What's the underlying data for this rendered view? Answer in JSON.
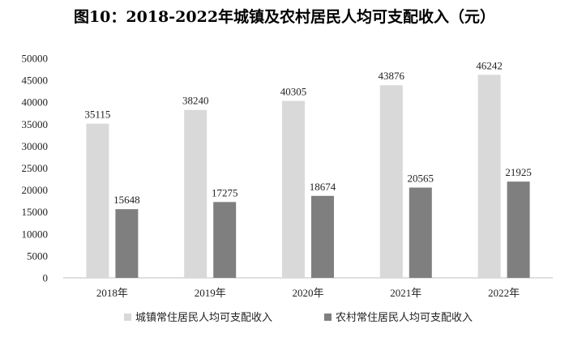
{
  "chart_data": {
    "type": "bar",
    "title": "图10：2018-2022年城镇及农村居民人均可支配收入（元）",
    "categories": [
      "2018年",
      "2019年",
      "2020年",
      "2021年",
      "2022年"
    ],
    "series": [
      {
        "name": "城镇常住居民人均可支配收入",
        "values": [
          35115,
          38240,
          40305,
          43876,
          46242
        ],
        "color": "#d9d9d9"
      },
      {
        "name": "农村常住居民人均可支配收入",
        "values": [
          15648,
          17275,
          18674,
          20565,
          21925
        ],
        "color": "#7f7f7f"
      }
    ],
    "ylim": [
      0,
      50000
    ],
    "yticks": [
      0,
      5000,
      10000,
      15000,
      20000,
      25000,
      30000,
      35000,
      40000,
      45000,
      50000
    ],
    "xlabel": "",
    "ylabel": "",
    "grid": false,
    "legend_position": "bottom"
  }
}
